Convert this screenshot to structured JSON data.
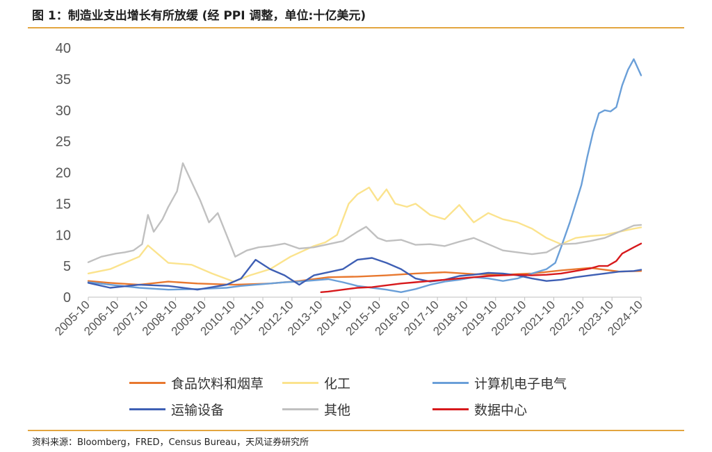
{
  "title": "图 1：制造业支出增长有所放缓 (经 PPI 调整，单位:十亿美元)",
  "source": "资料来源：Bloomberg，FRED，Census  Bureau，天风证券研究所",
  "chart_data": {
    "type": "line",
    "ylim": [
      0,
      40
    ],
    "yticks": [
      0,
      5,
      10,
      15,
      20,
      25,
      30,
      35,
      40
    ],
    "xlim": [
      2005.75,
      2024.75
    ],
    "xtick_labels": [
      "2005-10",
      "2006-10",
      "2007-10",
      "2008-10",
      "2009-10",
      "2010-10",
      "2011-10",
      "2012-10",
      "2013-10",
      "2014-10",
      "2015-10",
      "2016-10",
      "2017-10",
      "2018-10",
      "2019-10",
      "2020-10",
      "2021-10",
      "2022-10",
      "2023-10",
      "2024-10"
    ],
    "grid": false,
    "legend_position": "bottom",
    "series": [
      {
        "name": "食品饮料和烟草",
        "color": "#e8782f",
        "x": [
          2005.75,
          2006.5,
          2007.5,
          2008.5,
          2009.5,
          2010.75,
          2012.0,
          2013.0,
          2014.0,
          2015.0,
          2016.0,
          2017.0,
          2018.0,
          2019.0,
          2020.0,
          2021.0,
          2022.0,
          2023.0,
          2024.0,
          2024.75
        ],
        "y": [
          2.6,
          2.3,
          2.0,
          2.5,
          2.2,
          2.0,
          2.2,
          2.6,
          3.2,
          3.3,
          3.5,
          3.8,
          4.0,
          3.7,
          3.6,
          3.8,
          4.3,
          4.7,
          4.1,
          4.2
        ]
      },
      {
        "name": "化工",
        "color": "#fbe38d",
        "x": [
          2005.75,
          2006.5,
          2007.0,
          2007.5,
          2007.8,
          2008.5,
          2009.3,
          2010.0,
          2010.75,
          2011.3,
          2012.0,
          2012.7,
          2013.5,
          2013.9,
          2014.3,
          2014.7,
          2015.0,
          2015.4,
          2015.7,
          2016.0,
          2016.3,
          2016.7,
          2017.0,
          2017.5,
          2018.0,
          2018.5,
          2019.0,
          2019.5,
          2020.0,
          2020.5,
          2021.0,
          2021.5,
          2022.0,
          2022.5,
          2023.0,
          2023.5,
          2024.0,
          2024.5,
          2024.75
        ],
        "y": [
          3.8,
          4.5,
          5.5,
          6.5,
          8.3,
          5.5,
          5.2,
          3.8,
          2.5,
          3.5,
          4.5,
          6.5,
          8.2,
          8.8,
          10.0,
          15.0,
          16.5,
          17.6,
          15.5,
          17.3,
          15.0,
          14.5,
          15.0,
          13.2,
          12.5,
          14.8,
          12.0,
          13.5,
          12.5,
          12.0,
          11.0,
          9.5,
          8.5,
          9.5,
          9.8,
          10.0,
          10.5,
          11.0,
          11.2
        ]
      },
      {
        "name": "计算机电子电气",
        "color": "#6a9fd8",
        "x": [
          2005.75,
          2006.5,
          2007.5,
          2008.5,
          2009.5,
          2010.5,
          2011.0,
          2011.5,
          2012.0,
          2012.5,
          2013.0,
          2013.5,
          2014.0,
          2014.5,
          2015.0,
          2015.5,
          2016.0,
          2016.5,
          2017.0,
          2017.5,
          2018.0,
          2018.5,
          2019.0,
          2019.5,
          2020.0,
          2020.5,
          2021.0,
          2021.5,
          2021.8,
          2022.0,
          2022.3,
          2022.5,
          2022.7,
          2022.9,
          2023.1,
          2023.3,
          2023.5,
          2023.7,
          2023.9,
          2024.1,
          2024.3,
          2024.5,
          2024.75
        ],
        "y": [
          2.4,
          2.0,
          1.5,
          1.2,
          1.3,
          1.5,
          1.8,
          2.0,
          2.2,
          2.4,
          2.5,
          2.7,
          2.9,
          2.4,
          1.8,
          1.5,
          1.2,
          0.8,
          1.3,
          2.0,
          2.5,
          2.8,
          3.2,
          3.0,
          2.6,
          3.0,
          3.8,
          4.5,
          5.5,
          8.0,
          12.0,
          15.0,
          18.0,
          22.5,
          26.5,
          29.5,
          30.0,
          29.8,
          30.5,
          34.0,
          36.5,
          38.2,
          35.6
        ]
      },
      {
        "name": "运输设备",
        "color": "#3e5fb4",
        "x": [
          2005.75,
          2006.5,
          2007.5,
          2008.5,
          2009.5,
          2010.5,
          2011.0,
          2011.5,
          2012.0,
          2012.5,
          2013.0,
          2013.5,
          2014.0,
          2014.5,
          2015.0,
          2015.5,
          2016.0,
          2016.5,
          2017.0,
          2017.5,
          2018.0,
          2018.5,
          2019.0,
          2019.5,
          2020.0,
          2020.5,
          2021.0,
          2021.5,
          2022.0,
          2022.5,
          2023.0,
          2023.5,
          2024.0,
          2024.5,
          2024.75
        ],
        "y": [
          2.3,
          1.5,
          2.0,
          1.8,
          1.2,
          2.0,
          3.0,
          6.0,
          4.5,
          3.5,
          2.0,
          3.5,
          4.0,
          4.5,
          6.0,
          6.3,
          5.5,
          4.5,
          3.0,
          2.5,
          2.8,
          3.4,
          3.6,
          3.9,
          3.8,
          3.5,
          3.0,
          2.6,
          2.8,
          3.2,
          3.5,
          3.8,
          4.1,
          4.2,
          4.4
        ]
      },
      {
        "name": "其他",
        "color": "#c0c0c0",
        "x": [
          2005.75,
          2006.2,
          2006.7,
          2007.0,
          2007.3,
          2007.6,
          2007.8,
          2008.0,
          2008.3,
          2008.5,
          2008.8,
          2009.0,
          2009.3,
          2009.6,
          2009.9,
          2010.2,
          2010.5,
          2010.8,
          2011.2,
          2011.6,
          2012.0,
          2012.5,
          2013.0,
          2013.5,
          2014.0,
          2014.5,
          2015.0,
          2015.3,
          2015.7,
          2016.0,
          2016.5,
          2017.0,
          2017.5,
          2018.0,
          2018.5,
          2019.0,
          2019.5,
          2020.0,
          2020.5,
          2021.0,
          2021.5,
          2022.0,
          2022.5,
          2023.0,
          2023.5,
          2024.0,
          2024.5,
          2024.75
        ],
        "y": [
          5.6,
          6.5,
          7.0,
          7.2,
          7.5,
          8.5,
          13.2,
          10.5,
          12.5,
          14.5,
          17.0,
          21.5,
          18.5,
          15.5,
          12.0,
          13.5,
          10.0,
          6.5,
          7.5,
          8.0,
          8.2,
          8.6,
          7.8,
          8.0,
          8.5,
          9.0,
          10.5,
          11.3,
          9.5,
          9.0,
          9.2,
          8.4,
          8.5,
          8.2,
          8.9,
          9.5,
          8.5,
          7.5,
          7.2,
          6.9,
          7.2,
          8.5,
          8.6,
          9.0,
          9.5,
          10.5,
          11.5,
          11.6
        ]
      },
      {
        "name": "数据中心",
        "color": "#d7191c",
        "x": [
          2013.75,
          2014.0,
          2014.5,
          2015.0,
          2015.5,
          2016.0,
          2016.5,
          2017.0,
          2017.5,
          2018.0,
          2018.5,
          2019.0,
          2019.5,
          2020.0,
          2020.5,
          2021.0,
          2021.5,
          2022.0,
          2022.5,
          2023.0,
          2023.3,
          2023.6,
          2023.9,
          2024.1,
          2024.3,
          2024.5,
          2024.75
        ],
        "y": [
          0.8,
          0.9,
          1.2,
          1.5,
          1.6,
          1.9,
          2.2,
          2.4,
          2.6,
          2.8,
          3.0,
          3.2,
          3.4,
          3.5,
          3.6,
          3.5,
          3.6,
          3.8,
          4.2,
          4.6,
          5.0,
          5.0,
          5.8,
          7.0,
          7.5,
          8.0,
          8.6
        ]
      }
    ]
  }
}
